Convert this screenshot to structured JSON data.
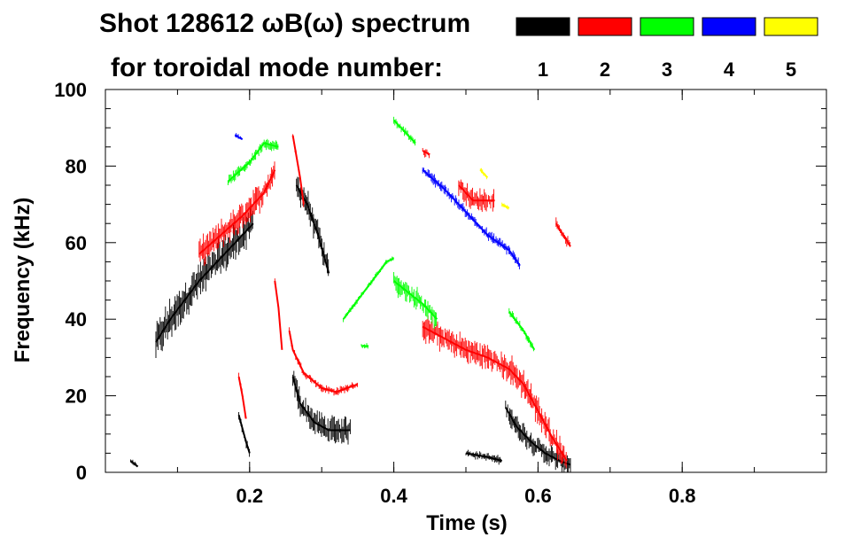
{
  "chart_data": {
    "type": "spectrogram",
    "title": "Shot 128612 ωB(ω) spectrum",
    "legend_caption": "for toroidal mode number:",
    "xlabel": "Time (s)",
    "ylabel": "Frequency (kHz)",
    "xlim": [
      0.0,
      1.0
    ],
    "ylim": [
      0,
      100
    ],
    "xticks": [
      0.2,
      0.4,
      0.6,
      0.8
    ],
    "xtick_labels": [
      "0.2",
      "0.4",
      "0.6",
      "0.8"
    ],
    "yticks": [
      0,
      20,
      40,
      60,
      80,
      100
    ],
    "ytick_labels": [
      "0",
      "20",
      "40",
      "60",
      "80",
      "100"
    ],
    "grid": false,
    "legend": [
      {
        "mode": "1",
        "color": "#000000"
      },
      {
        "mode": "2",
        "color": "#ff0000"
      },
      {
        "mode": "3",
        "color": "#00ff00"
      },
      {
        "mode": "4",
        "color": "#0000ff"
      },
      {
        "mode": "5",
        "color": "#ffff00"
      }
    ],
    "series": [
      {
        "name": "n=1",
        "color": "#000000",
        "segments": [
          {
            "points": [
              [
                0.07,
                34
              ],
              [
                0.09,
                40
              ],
              [
                0.11,
                45
              ],
              [
                0.13,
                50
              ],
              [
                0.15,
                54
              ],
              [
                0.17,
                58
              ],
              [
                0.19,
                62
              ],
              [
                0.205,
                65
              ]
            ],
            "spread": 7
          },
          {
            "points": [
              [
                0.265,
                75
              ],
              [
                0.28,
                70
              ],
              [
                0.295,
                62
              ],
              [
                0.31,
                52
              ]
            ],
            "spread": 5
          },
          {
            "points": [
              [
                0.26,
                25
              ],
              [
                0.27,
                18
              ],
              [
                0.29,
                13
              ],
              [
                0.31,
                11
              ],
              [
                0.34,
                11
              ]
            ],
            "spread": 5
          },
          {
            "points": [
              [
                0.185,
                15
              ],
              [
                0.195,
                8
              ],
              [
                0.2,
                5
              ]
            ],
            "spread": 2
          },
          {
            "points": [
              [
                0.5,
                5
              ],
              [
                0.53,
                4
              ],
              [
                0.55,
                3
              ]
            ],
            "spread": 1.5
          },
          {
            "points": [
              [
                0.555,
                17
              ],
              [
                0.57,
                12
              ],
              [
                0.59,
                8
              ],
              [
                0.61,
                5
              ],
              [
                0.63,
                3
              ],
              [
                0.645,
                2
              ]
            ],
            "spread": 4
          },
          {
            "points": [
              [
                0.035,
                3
              ],
              [
                0.045,
                1.5
              ]
            ],
            "spread": 1
          }
        ]
      },
      {
        "name": "n=2",
        "color": "#ff0000",
        "segments": [
          {
            "points": [
              [
                0.13,
                57
              ],
              [
                0.16,
                62
              ],
              [
                0.19,
                67
              ],
              [
                0.22,
                73
              ],
              [
                0.235,
                79
              ]
            ],
            "spread": 5
          },
          {
            "points": [
              [
                0.26,
                88
              ],
              [
                0.27,
                77
              ],
              [
                0.275,
                70
              ]
            ],
            "spread": 1.5
          },
          {
            "points": [
              [
                0.255,
                37
              ],
              [
                0.26,
                32
              ],
              [
                0.275,
                26
              ],
              [
                0.3,
                22
              ],
              [
                0.32,
                21
              ],
              [
                0.35,
                23
              ]
            ],
            "spread": 1.5
          },
          {
            "points": [
              [
                0.235,
                50
              ],
              [
                0.24,
                43
              ],
              [
                0.245,
                32
              ]
            ],
            "spread": 1.5
          },
          {
            "points": [
              [
                0.185,
                25
              ],
              [
                0.19,
                20
              ],
              [
                0.195,
                14
              ]
            ],
            "spread": 1.5
          },
          {
            "points": [
              [
                0.44,
                38
              ],
              [
                0.47,
                35
              ],
              [
                0.5,
                32
              ],
              [
                0.53,
                30
              ],
              [
                0.56,
                27
              ],
              [
                0.58,
                23
              ],
              [
                0.6,
                16
              ],
              [
                0.62,
                9
              ],
              [
                0.64,
                3
              ]
            ],
            "spread": 5
          },
          {
            "points": [
              [
                0.49,
                75
              ],
              [
                0.51,
                71
              ],
              [
                0.54,
                71
              ]
            ],
            "spread": 4
          },
          {
            "points": [
              [
                0.44,
                84
              ],
              [
                0.45,
                83
              ]
            ],
            "spread": 2
          },
          {
            "points": [
              [
                0.625,
                65
              ],
              [
                0.635,
                62
              ],
              [
                0.645,
                59
              ]
            ],
            "spread": 2
          }
        ]
      },
      {
        "name": "n=3",
        "color": "#00ff00",
        "segments": [
          {
            "points": [
              [
                0.17,
                76
              ],
              [
                0.2,
                81
              ],
              [
                0.22,
                86
              ],
              [
                0.24,
                85
              ]
            ],
            "spread": 2
          },
          {
            "points": [
              [
                0.33,
                40
              ],
              [
                0.35,
                45
              ],
              [
                0.37,
                50
              ],
              [
                0.39,
                55
              ],
              [
                0.4,
                56
              ]
            ],
            "spread": 1
          },
          {
            "points": [
              [
                0.4,
                50
              ],
              [
                0.42,
                47
              ],
              [
                0.44,
                44
              ],
              [
                0.46,
                40
              ]
            ],
            "spread": 4
          },
          {
            "points": [
              [
                0.4,
                92
              ],
              [
                0.415,
                89
              ],
              [
                0.43,
                86
              ]
            ],
            "spread": 1.5
          },
          {
            "points": [
              [
                0.56,
                42
              ],
              [
                0.58,
                37
              ],
              [
                0.595,
                32
              ]
            ],
            "spread": 1.5
          },
          {
            "points": [
              [
                0.355,
                33
              ],
              [
                0.365,
                33
              ]
            ],
            "spread": 1
          }
        ]
      },
      {
        "name": "n=4",
        "color": "#0000ff",
        "segments": [
          {
            "points": [
              [
                0.44,
                79
              ],
              [
                0.47,
                74
              ],
              [
                0.5,
                68
              ],
              [
                0.53,
                62
              ],
              [
                0.56,
                58
              ],
              [
                0.575,
                54
              ]
            ],
            "spread": 2
          },
          {
            "points": [
              [
                0.18,
                88
              ],
              [
                0.19,
                87
              ]
            ],
            "spread": 1
          }
        ]
      },
      {
        "name": "n=5",
        "color": "#ffff00",
        "segments": [
          {
            "points": [
              [
                0.52,
                79
              ],
              [
                0.53,
                77
              ]
            ],
            "spread": 1
          },
          {
            "points": [
              [
                0.55,
                70
              ],
              [
                0.56,
                69
              ]
            ],
            "spread": 1
          }
        ]
      }
    ]
  }
}
